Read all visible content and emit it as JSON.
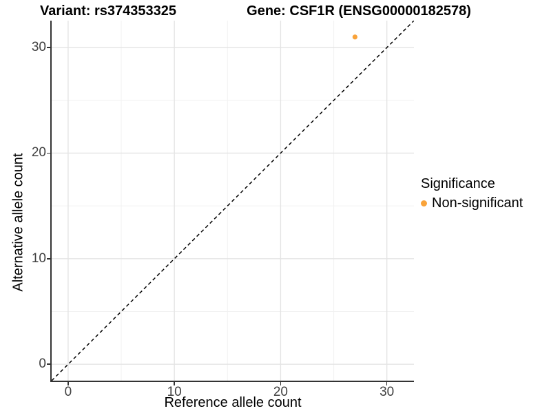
{
  "chart": {
    "title_left": "Variant: rs374353325",
    "title_right": "Gene: CSF1R (ENSG00000182578)",
    "xlabel": "Reference allele count",
    "ylabel": "Alternative allele count",
    "legend": {
      "title": "Significance",
      "entries": [
        {
          "label": "Non-significant",
          "color": "#F9A33A"
        }
      ]
    }
  },
  "chart_data": {
    "type": "scatter",
    "title": "Variant: rs374353325 — Gene: CSF1R (ENSG00000182578)",
    "xlabel": "Reference allele count",
    "ylabel": "Alternative allele count",
    "xlim": [
      -1.55,
      32.55
    ],
    "ylim": [
      -1.55,
      32.55
    ],
    "x_major_ticks": [
      0,
      10,
      20,
      30
    ],
    "y_major_ticks": [
      0,
      10,
      20,
      30
    ],
    "x_minor_gridlines": [
      5,
      15,
      25
    ],
    "y_minor_gridlines": [
      5,
      15,
      25
    ],
    "grid": true,
    "legend_position": "right",
    "series": [
      {
        "name": "Non-significant",
        "color": "#F9A33A",
        "points": [
          {
            "x": 27,
            "y": 31
          }
        ]
      }
    ],
    "reference_line": {
      "style": "dashed",
      "color": "#000000",
      "slope": 1,
      "intercept": 0
    }
  },
  "colors": {
    "point": "#F9A33A",
    "grid_major": "#E4E4E4",
    "grid_minor": "#F1F1F1",
    "axis_line": "#333333",
    "tick_label": "#404040"
  }
}
